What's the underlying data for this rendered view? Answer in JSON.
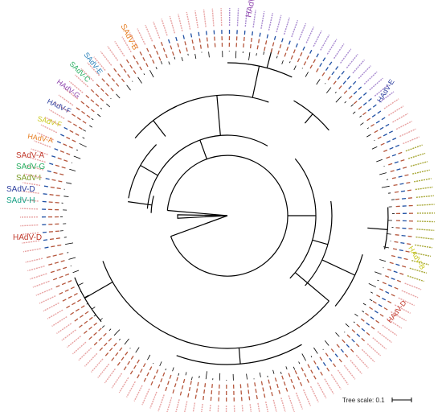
{
  "figure": {
    "scale_label": "Tree scale: 0.1"
  },
  "clades": [
    {
      "name": "HAdV-C",
      "color": "#8e44ad"
    },
    {
      "name": "SAdV-B",
      "color": "#e67e22"
    },
    {
      "name": "SAdV-E",
      "color": "#2980b9"
    },
    {
      "name": "SAdV-C",
      "color": "#27ae60"
    },
    {
      "name": "HAdV-G",
      "color": "#8e44ad"
    },
    {
      "name": "HAdV-F",
      "color": "#2c3e9e"
    },
    {
      "name": "SAdV-F",
      "color": "#c9c91e"
    },
    {
      "name": "HAdV-A",
      "color": "#e67e22"
    },
    {
      "name": "SAdV-A",
      "color": "#c0392b"
    },
    {
      "name": "SAdV-G",
      "color": "#27ae60"
    },
    {
      "name": "SAdV-I",
      "color": "#7d9c2a"
    },
    {
      "name": "SAdV-D",
      "color": "#2c3e9e"
    },
    {
      "name": "SAdV-H",
      "color": "#16a085"
    },
    {
      "name": "HAdV-E",
      "color": "#2c3e9e"
    },
    {
      "name": "HAdV-B",
      "color": "#c9c91e"
    },
    {
      "name": "HAdV-D",
      "color": "#c0392b"
    }
  ],
  "colors": {
    "branch": "#000000",
    "leaf_label_pink": "#e8a3a3",
    "leaf_label_purple": "#a98bd0",
    "leaf_label_olive": "#a9a93a",
    "ring_dash_blue": "#1f4fa3",
    "ring_dash_red": "#b5563c"
  }
}
